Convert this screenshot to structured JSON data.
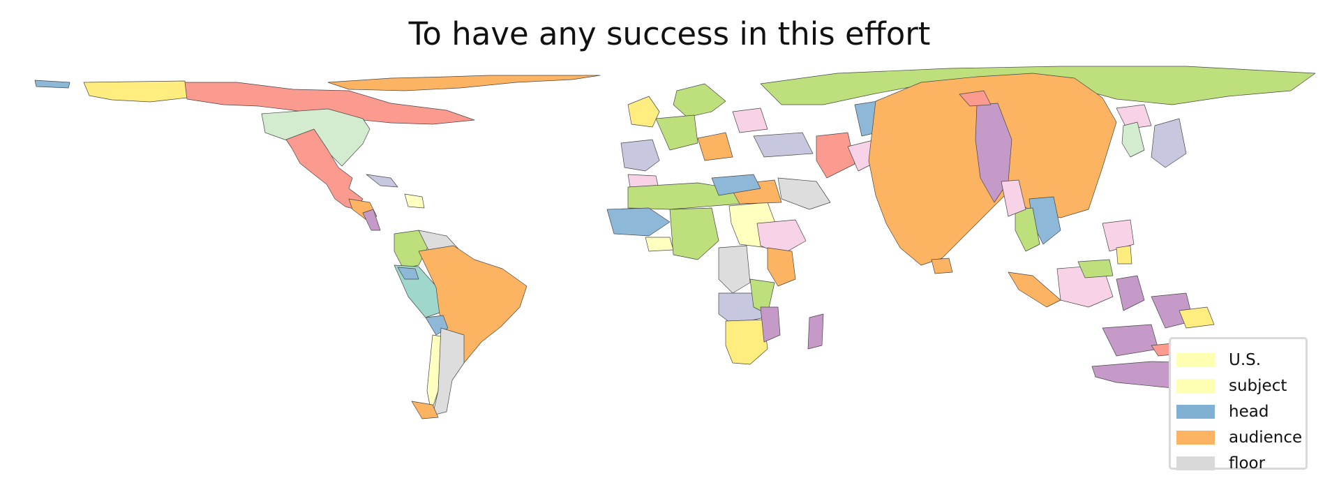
{
  "title": "To have any success in this effort",
  "legend": [
    {
      "label": "U.S.",
      "color": "#ffffb3"
    },
    {
      "label": "subject",
      "color": "#ffffb3"
    },
    {
      "label": "head",
      "color": "#80b1d3"
    },
    {
      "label": "audience",
      "color": "#fdb462"
    },
    {
      "label": "floor",
      "color": "#d9d9d9"
    }
  ],
  "map_palette": {
    "orange": "#fdb462",
    "green": "#bde07c",
    "salmon": "#fb9a8f",
    "mint": "#d3ecd0",
    "yellow": "#ffed80",
    "pale_yellow": "#ffffc0",
    "blue": "#8db8d8",
    "lavender": "#c8c7e0",
    "pink": "#f8d2e6",
    "purple": "#c59ac9",
    "grey": "#dddddd",
    "teal": "#9fd7cc",
    "border": "#444444"
  }
}
